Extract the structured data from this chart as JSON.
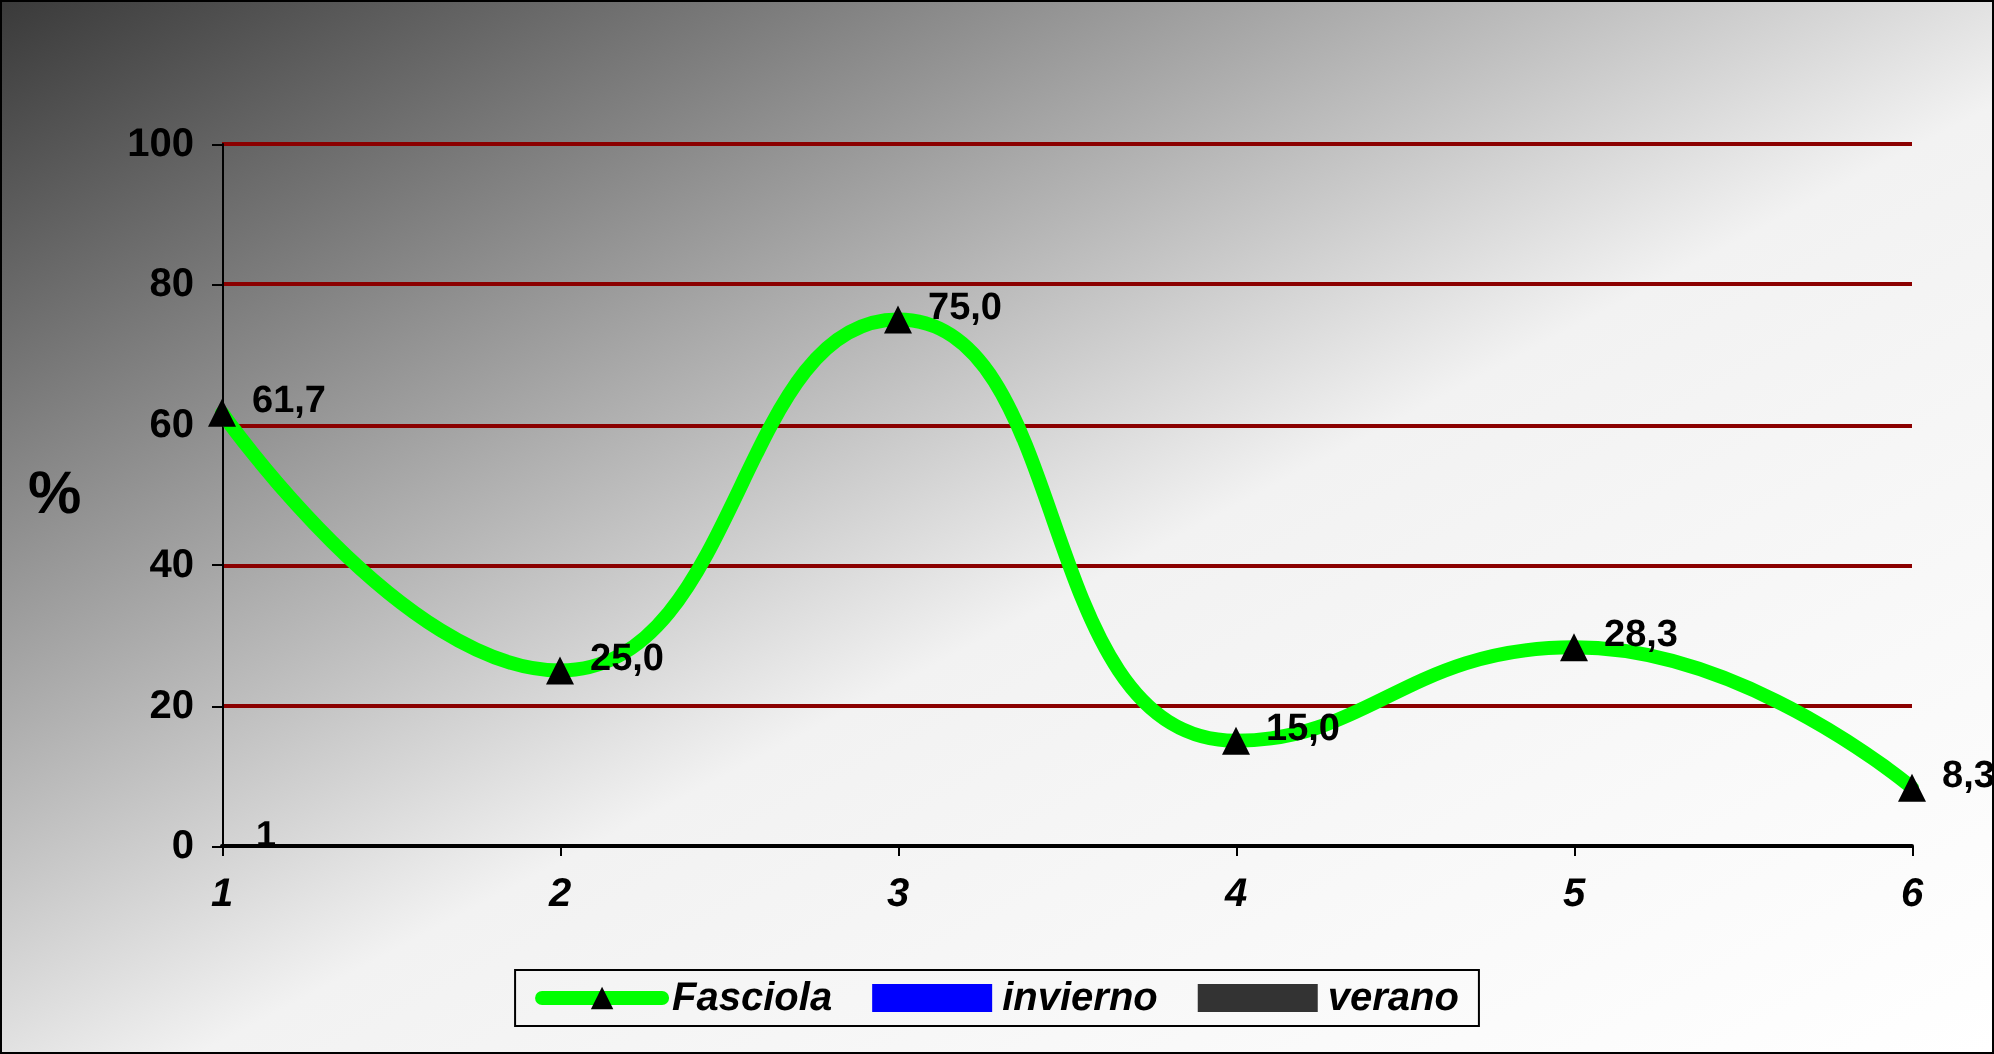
{
  "chart_data": {
    "type": "line",
    "ylabel": "%",
    "categories": [
      "1",
      "2",
      "3",
      "4",
      "5",
      "6"
    ],
    "series": [
      {
        "name": "Fasciola",
        "color": "#00ff00",
        "marker": "triangle",
        "values": [
          61.7,
          25.0,
          75.0,
          15.0,
          28.3,
          8.3
        ],
        "value_labels": [
          "61,7",
          "25,0",
          "75,0",
          "15,0",
          "28,3",
          "8,3"
        ]
      },
      {
        "name": "invierno",
        "color": "#0000ff",
        "values": [
          null,
          null,
          null,
          null,
          null,
          null
        ]
      },
      {
        "name": "verano",
        "color": "#333333",
        "values": [
          null,
          null,
          null,
          null,
          null,
          null
        ]
      }
    ],
    "ylim": [
      0,
      100
    ],
    "yticks": [
      0,
      20,
      40,
      60,
      80,
      100
    ],
    "grid": "y",
    "legend": "bottom",
    "annotations": [
      "1"
    ]
  }
}
